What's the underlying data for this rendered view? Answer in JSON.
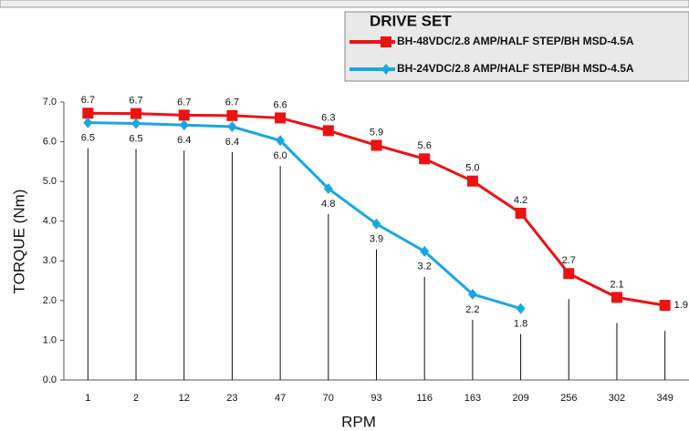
{
  "chart_data": {
    "type": "line",
    "xlabel": "RPM",
    "ylabel": "TORQUE (Nm)",
    "legend_title": "DRIVE SET",
    "legend": "top-right",
    "categories": [
      "1",
      "2",
      "12",
      "23",
      "47",
      "70",
      "93",
      "116",
      "163",
      "209",
      "256",
      "302",
      "349"
    ],
    "series": [
      {
        "name": "BH-48VDC/2.8 AMP/HALF STEP/BH MSD-4.5A",
        "color": "#ee1111",
        "marker": "square",
        "values": [
          6.72,
          6.71,
          6.67,
          6.66,
          6.6,
          6.28,
          5.91,
          5.57,
          5.01,
          4.2,
          2.68,
          2.08,
          1.88
        ],
        "value_labels": [
          "6.7",
          "6.7",
          "6.7",
          "6.7",
          "6.6",
          "6.3",
          "5.9",
          "5.6",
          "5.0",
          "4.2",
          "2.7",
          "2.1",
          "1.9"
        ]
      },
      {
        "name": "BH-24VDC/2.8 AMP/HALF STEP/BH MSD-4.5A",
        "color": "#1aa7e0",
        "marker": "diamond",
        "values": [
          6.48,
          6.46,
          6.42,
          6.38,
          6.03,
          4.82,
          3.93,
          3.24,
          2.16,
          1.8,
          null,
          null,
          null
        ],
        "value_labels": [
          "6.5",
          "6.5",
          "6.4",
          "6.4",
          "6.0",
          "4.8",
          "3.9",
          "3.2",
          "2.2",
          "1.8",
          null,
          null,
          null
        ]
      }
    ],
    "ylim": [
      0,
      7
    ],
    "yticks": [
      {
        "value": 0,
        "label": "0.0"
      },
      {
        "value": 1,
        "label": "1.0"
      },
      {
        "value": 2,
        "label": "2.0"
      },
      {
        "value": 3,
        "label": "3.0"
      },
      {
        "value": 4,
        "label": "4.0"
      },
      {
        "value": 5,
        "label": "5.0"
      },
      {
        "value": 6,
        "label": "6.0"
      },
      {
        "value": 7,
        "label": "7.0"
      }
    ],
    "grid": false
  }
}
